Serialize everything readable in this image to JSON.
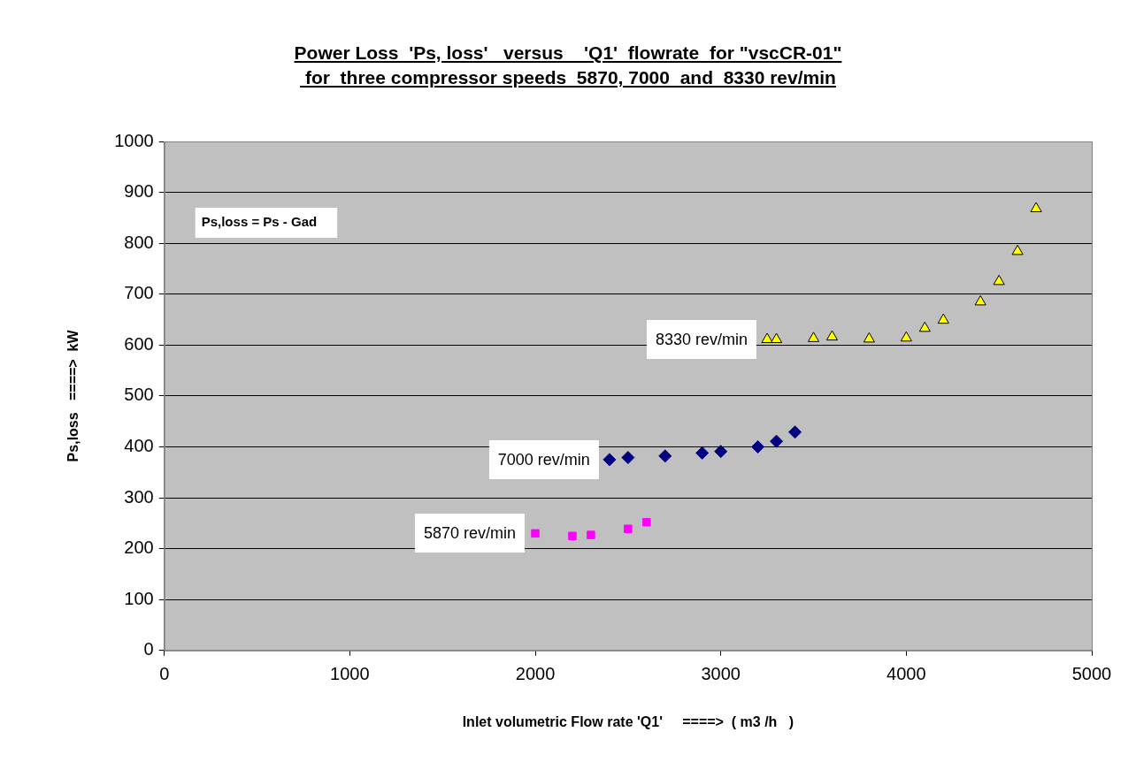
{
  "chart_data": {
    "type": "scatter",
    "title": "Power Loss  'Ps, loss'   versus    'Q1'  flowrate  for \"vscCR-01\"\n for  three compressor speeds  5870, 7000  and  8330 rev/min",
    "xlabel": "Inlet volumetric Flow rate 'Q1'     ====>  ( m3 /h   )",
    "ylabel": "Ps,loss   ====>  kW",
    "annotations": [
      "Ps,loss = Ps - Gad"
    ],
    "xlim": [
      0,
      5000
    ],
    "xticks": [
      0,
      1000,
      2000,
      3000,
      4000,
      5000
    ],
    "ylim": [
      0,
      1000
    ],
    "yticks": [
      0,
      100,
      200,
      300,
      400,
      500,
      600,
      700,
      800,
      900,
      1000
    ],
    "grid": "y",
    "legend": false,
    "series": [
      {
        "name": "5870 rev/min",
        "color": "#ff00ff",
        "marker": "square",
        "x": [
          2000,
          2200,
          2300,
          2500,
          2600
        ],
        "values": [
          230,
          225,
          227,
          239,
          252
        ]
      },
      {
        "name": "7000 rev/min",
        "color": "#000080",
        "marker": "diamond",
        "x": [
          2400,
          2500,
          2700,
          2900,
          3000,
          3200,
          3300,
          3400
        ],
        "values": [
          375,
          379,
          382,
          388,
          391,
          400,
          411,
          429
        ]
      },
      {
        "name": "8330 rev/min",
        "color": "#ffff00",
        "marker": "triangle",
        "x": [
          3250,
          3300,
          3500,
          3600,
          3800,
          4000,
          4100,
          4200,
          4400,
          4500,
          4600,
          4700
        ],
        "values": [
          611,
          611,
          613,
          616,
          612,
          614,
          633,
          649,
          685,
          725,
          784,
          868
        ]
      }
    ]
  }
}
